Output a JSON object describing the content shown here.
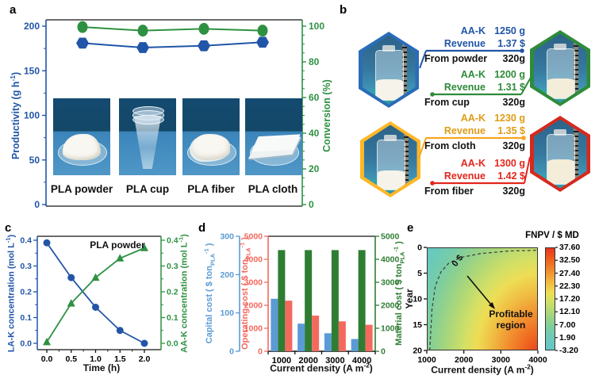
{
  "panels": {
    "a": "a",
    "b": "b",
    "c": "c",
    "d": "d",
    "e": "e"
  },
  "chart_data": [
    {
      "id": "a",
      "type": "line",
      "panel": "a",
      "categories": [
        "PLA powder",
        "PLA cup",
        "PLA fiber",
        "PLA cloth"
      ],
      "series": [
        {
          "name": "Productivity",
          "axis": "left",
          "marker": "hexagon",
          "color": "#2155a8",
          "values": [
            181,
            176,
            178,
            182
          ]
        },
        {
          "name": "Conversion",
          "axis": "right",
          "marker": "circle",
          "color": "#2e9142",
          "values": [
            99.5,
            97.5,
            98.5,
            97.5
          ]
        }
      ],
      "left_axis": {
        "label": "Productivity (g h",
        "label_sup": "-1",
        "label_close": ")",
        "ticks": [
          "0",
          "50",
          "100",
          "150",
          "200"
        ],
        "lim": [
          0,
          209
        ],
        "color": "#2155a8"
      },
      "right_axis": {
        "label": "Conversion (%)",
        "ticks": [
          "0",
          "20",
          "40",
          "60",
          "80",
          "100"
        ],
        "lim": [
          0,
          104
        ],
        "color": "#2e9142"
      },
      "grid": false
    },
    {
      "id": "c",
      "type": "line",
      "panel": "c",
      "annotation": "PLA powder",
      "x": [
        0,
        0.5,
        1,
        1.5,
        2
      ],
      "x_ticks": [
        "0.0",
        "0.5",
        "1.0",
        "1.5",
        "2.0"
      ],
      "xlabel": "Time (h)",
      "series": [
        {
          "name": "LA-K",
          "axis": "left",
          "marker": "circle",
          "color": "#2155a8",
          "values": [
            0.39,
            0.255,
            0.14,
            0.05,
            0.0
          ]
        },
        {
          "name": "AA-K",
          "axis": "right",
          "marker": "triangle",
          "color": "#2e9142",
          "values": [
            0.005,
            0.155,
            0.255,
            0.33,
            0.37
          ]
        }
      ],
      "left_axis": {
        "label": "LA-K concentration (mol L",
        "label_sup": "-1",
        "label_close": ")",
        "ticks": [
          "0.0",
          "0.1",
          "0.2",
          "0.3",
          "0.4"
        ],
        "lim": [
          -0.02,
          0.42
        ],
        "color": "#2155a8"
      },
      "right_axis": {
        "label": "AA-K concentration (mol L",
        "label_sup": "-1",
        "label_close": ")",
        "ticks": [
          "0.0",
          "0.1",
          "0.2",
          "0.3",
          "0.4"
        ],
        "lim": [
          -0.02,
          0.42
        ],
        "color": "#2e9142"
      },
      "grid": false
    },
    {
      "id": "d",
      "type": "bar",
      "panel": "d",
      "categories": [
        "1000",
        "2000",
        "3000",
        "4000"
      ],
      "xlabel": "Current density (A m",
      "xlabel_sup": "-2",
      "xlabel_close": ")",
      "series": [
        {
          "name": "Capital cost",
          "axis": "capital",
          "color": "#5b9bd5",
          "values": [
            137,
            72,
            47,
            32
          ]
        },
        {
          "name": "Material cost",
          "axis": "material",
          "color": "#2f7d33",
          "values": [
            4400,
            4400,
            4400,
            4400
          ]
        },
        {
          "name": "Operating cost",
          "axis": "operating",
          "color": "#f4695e",
          "values": [
            2200,
            1550,
            1300,
            1150
          ]
        }
      ],
      "axes": {
        "capital": {
          "label": "Capital cost ( $ ton",
          "label_sub": "PLA",
          "label_sup": "-1",
          "label_close": " )",
          "ticks": [
            "0",
            "100",
            "200",
            "300"
          ],
          "max": 300,
          "color": "#5b9bd5"
        },
        "operating": {
          "label": "Operating cost ( $ ton",
          "label_sub": "PLA",
          "label_sup": "-1",
          "label_close": " )",
          "ticks": [
            "0",
            "1000",
            "2000",
            "3000",
            "4000",
            "5000"
          ],
          "max": 5000,
          "color": "#f4695e"
        },
        "material": {
          "label": "Material cost ( $ ton",
          "label_sub": "PLA",
          "label_sup": "-1",
          "label_close": " )",
          "ticks": [
            "0",
            "1000",
            "2000",
            "3000",
            "4000",
            "5000"
          ],
          "max": 5000,
          "color": "#2f7d33"
        }
      },
      "grid": false
    },
    {
      "id": "e",
      "type": "heatmap",
      "panel": "e",
      "xlabel": "Current density (A m",
      "xlabel_sup": "-2",
      "xlabel_close": ")",
      "ylabel": "Year",
      "x_ticks": [
        "1000",
        "2000",
        "3000",
        "4000"
      ],
      "y_ticks": [
        "0",
        "5",
        "10",
        "15",
        "20"
      ],
      "x_range": [
        1000,
        4000
      ],
      "y_range": [
        0,
        20
      ],
      "colorbar": {
        "title": "FNPV / $ MD",
        "ticks": [
          "37.60",
          "32.50",
          "27.40",
          "22.30",
          "17.20",
          "12.10",
          "7.00",
          "1.90",
          "-3.20"
        ],
        "max": 37.6,
        "min": -3.2
      },
      "zero_label": "0 $",
      "annotation": "Profitable region",
      "zero_contour_points_cd_year": [
        [
          1080,
          20
        ],
        [
          1140,
          12
        ],
        [
          1230,
          7.5
        ],
        [
          1380,
          4.8
        ],
        [
          1600,
          3.0
        ],
        [
          1950,
          1.9
        ],
        [
          2450,
          1.2
        ],
        [
          3200,
          0.7
        ],
        [
          4000,
          0.55
        ]
      ],
      "gradient": [
        "#e8341c",
        "#ef6420",
        "#f29230",
        "#f0bc42",
        "#eedd55",
        "#d4e065",
        "#b0d876",
        "#8fd18d",
        "#75cca9",
        "#68c9bf",
        "#64c8c6"
      ]
    }
  ],
  "panel_b": {
    "items": [
      {
        "name": "powder",
        "color": "#2155a8",
        "product_label": "AA-K",
        "product_mass": "1250 g",
        "revenue_label": "Revenue",
        "revenue": "1.37 $",
        "source": "From powder",
        "input_mass": "320g"
      },
      {
        "name": "cup",
        "color": "#2e8b3a",
        "product_label": "AA-K",
        "product_mass": "1200 g",
        "revenue_label": "Revenue",
        "revenue": "1.31 $",
        "source": "From cup",
        "input_mass": "320g"
      },
      {
        "name": "cloth",
        "color": "#f5a623",
        "product_label": "AA-K",
        "product_mass": "1230 g",
        "revenue_label": "Revenue",
        "revenue": "1.35 $",
        "source": "From cloth",
        "input_mass": "320g"
      },
      {
        "name": "fiber",
        "color": "#e3261d",
        "product_label": "AA-K",
        "product_mass": "1300 g",
        "revenue_label": "Revenue",
        "revenue": "1.42 $",
        "source": "From fiber",
        "input_mass": "320g"
      }
    ]
  }
}
